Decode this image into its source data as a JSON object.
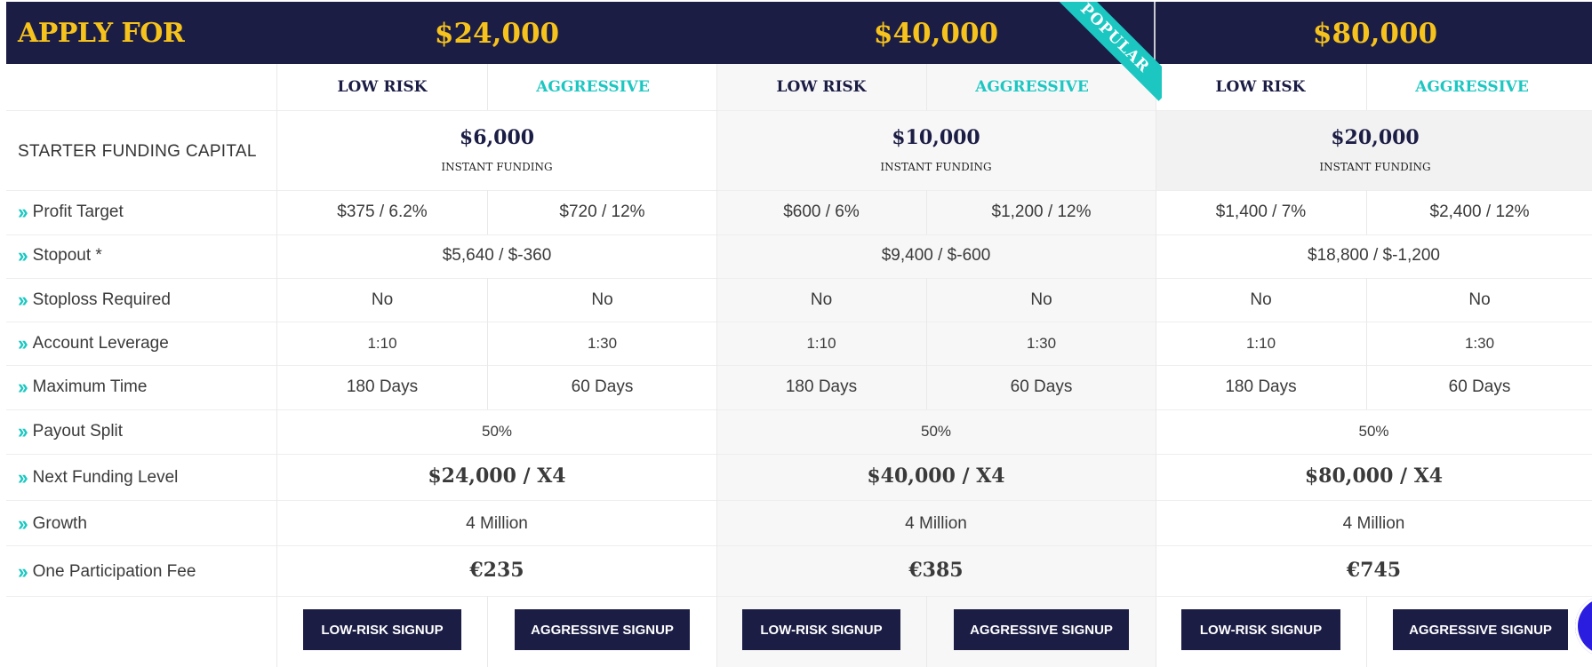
{
  "header": {
    "apply_label": "APPLY FOR",
    "prices": [
      "$24,000",
      "$40,000",
      "$80,000"
    ],
    "popular_label": "POPULAR"
  },
  "tiers": {
    "low_label": "LOW RISK",
    "aggressive_label": "AGGRESSIVE"
  },
  "rows": {
    "starter_label": "STARTER FUNDING CAPITAL",
    "instant_label": "INSTANT FUNDING",
    "funding": [
      "$6,000",
      "$10,000",
      "$20,000"
    ],
    "profit_target": {
      "label": "Profit Target",
      "values": [
        "$375 / 6.2%",
        "$720 / 12%",
        "$600 / 6%",
        "$1,200 / 12%",
        "$1,400 / 7%",
        "$2,400 / 12%"
      ]
    },
    "stopout": {
      "label": "Stopout *",
      "values": [
        "$5,640 / $-360",
        "$9,400 / $-600",
        "$18,800 / $-1,200"
      ]
    },
    "stoploss": {
      "label": "Stoploss Required",
      "values": [
        "No",
        "No",
        "No",
        "No",
        "No",
        "No"
      ]
    },
    "leverage": {
      "label": "Account Leverage",
      "values": [
        "1:10",
        "1:30",
        "1:10",
        "1:30",
        "1:10",
        "1:30"
      ]
    },
    "max_time": {
      "label": "Maximum Time",
      "values": [
        "180 Days",
        "60 Days",
        "180 Days",
        "60 Days",
        "180 Days",
        "60 Days"
      ]
    },
    "payout": {
      "label": "Payout Split",
      "values": [
        "50%",
        "50%",
        "50%"
      ]
    },
    "next_level": {
      "label": "Next Funding Level",
      "values": [
        "$24,000 / X4",
        "$40,000 / X4",
        "$80,000 / X4"
      ]
    },
    "growth": {
      "label": "Growth",
      "values": [
        "4 Million",
        "4 Million",
        "4 Million"
      ]
    },
    "fee": {
      "label": "One Participation Fee",
      "values": [
        "€235",
        "€385",
        "€745"
      ]
    }
  },
  "buttons": {
    "low_signup": "LOW-RISK SIGNUP",
    "aggressive_signup": "AGGRESSIVE SIGNUP"
  },
  "colors": {
    "navy": "#1b1d45",
    "gold": "#f6c21c",
    "teal": "#1cc7c2",
    "fab": "#2b1de0"
  }
}
